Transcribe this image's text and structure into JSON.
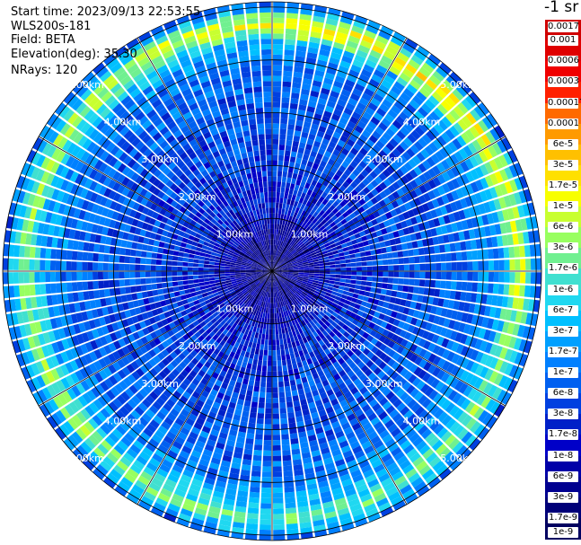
{
  "header": {
    "start_time": "Start time: 2023/09/13 22:53:55",
    "instrument": "WLS200s-181",
    "field": "Field: BETA",
    "elevation": "Elevation(deg): 35.30",
    "nrays": "NRays: 120"
  },
  "units_label": "-1 sr",
  "chart_data": {
    "type": "heatmap",
    "projection": "polar (PPI scan)",
    "field": "BETA",
    "n_rays": 120,
    "range_rings_km": [
      1.0,
      2.0,
      3.0,
      4.0,
      5.0
    ],
    "range_ring_labels": [
      "1.00km",
      "2.00km",
      "3.00km",
      "4.00km",
      "5.00km"
    ],
    "max_range_km": 5.1,
    "colorbar": {
      "scale": "log",
      "labels": [
        "0.0017",
        "0.001",
        "0.0006",
        "0.0003",
        "0.00017",
        "0.0001",
        "6e-5",
        "3e-5",
        "1.7e-5",
        "1e-5",
        "6e-6",
        "3e-6",
        "1.7e-6",
        "1e-6",
        "6e-7",
        "3e-7",
        "1.7e-7",
        "1e-7",
        "6e-8",
        "3e-8",
        "1.7e-8",
        "1e-8",
        "6e-9",
        "3e-9",
        "1.7e-9",
        "1e-9"
      ],
      "colors": [
        "#d00000",
        "#e00000",
        "#f00000",
        "#ff2000",
        "#ff6a00",
        "#ff9a00",
        "#ffc000",
        "#ffe000",
        "#f8ff00",
        "#c8ff30",
        "#98ff60",
        "#70f090",
        "#40e0d0",
        "#20d8f0",
        "#00c0ff",
        "#00a0ff",
        "#0080ff",
        "#0060f0",
        "#0040e0",
        "#0020c8",
        "#0000c8",
        "#0000a8",
        "#000090",
        "#000078",
        "#000060"
      ]
    },
    "radial_profile_log10_beta": [
      {
        "r_km": 0.0,
        "value": -8.6
      },
      {
        "r_km": 0.7,
        "value": -8.2
      },
      {
        "r_km": 1.2,
        "value": -7.7
      },
      {
        "r_km": 2.2,
        "value": -7.4
      },
      {
        "r_km": 3.2,
        "value": -7.2
      },
      {
        "r_km": 3.9,
        "value": -7.0
      },
      {
        "r_km": 4.3,
        "value": -6.6
      },
      {
        "r_km": 4.55,
        "value": -5.7
      },
      {
        "r_km": 4.7,
        "value": -5.2
      },
      {
        "r_km": 4.85,
        "value": -6.1
      },
      {
        "r_km": 5.1,
        "value": -7.3
      }
    ]
  }
}
